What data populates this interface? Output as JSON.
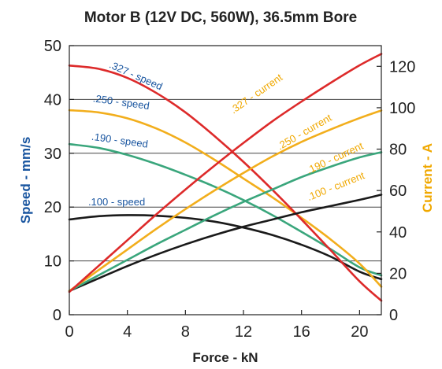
{
  "chart_data": {
    "type": "line",
    "title": "Motor B (12V DC, 560W), 36.5mm Bore",
    "xlabel": "Force - kN",
    "ylabel_left": "Speed - mm/s",
    "ylabel_right": "Current - A",
    "xlim": [
      0,
      21.5
    ],
    "ylim_left": [
      0,
      50
    ],
    "ylim_right": [
      0,
      130
    ],
    "x_ticks": [
      "0",
      "4",
      "8",
      "12",
      "16",
      "20"
    ],
    "y_left_ticks": [
      "0",
      "10",
      "20",
      "30",
      "40",
      "50"
    ],
    "y_right_ticks": [
      "0",
      "20",
      "40",
      "60",
      "80",
      "100",
      "120"
    ],
    "grid": "horizontal",
    "colors": {
      "axis_text": "#222222",
      "speed_label": "#1a56a0",
      "current_label": "#f0a800",
      "black": "#1a1a1a",
      "green": "#3aa67c",
      "orange": "#f2ae1c",
      "red": "#dd2a2a"
    },
    "series": [
      {
        "name": ".100 - speed",
        "color": "#1a1a1a",
        "axis": "left",
        "x": [
          0,
          2,
          4,
          6,
          8,
          10,
          12,
          14,
          16,
          18,
          20,
          21.5
        ],
        "y": [
          17.7,
          18.3,
          18.5,
          18.4,
          18.0,
          17.3,
          16.2,
          14.8,
          13.0,
          10.8,
          8.0,
          6.6
        ]
      },
      {
        "name": ".190 - speed",
        "color": "#3aa67c",
        "axis": "left",
        "x": [
          0,
          2,
          4,
          6,
          8,
          10,
          12,
          14,
          16,
          18,
          20,
          21.5
        ],
        "y": [
          31.7,
          31.0,
          29.7,
          28.0,
          26.0,
          23.8,
          21.3,
          18.5,
          15.4,
          12.2,
          8.8,
          7.3
        ]
      },
      {
        "name": ".250 - speed",
        "color": "#f2ae1c",
        "axis": "left",
        "x": [
          0,
          2,
          4,
          6,
          8,
          10,
          12,
          14,
          16,
          18,
          20,
          21.5
        ],
        "y": [
          38.0,
          37.6,
          36.5,
          34.6,
          32.0,
          28.8,
          25.3,
          21.8,
          18.0,
          14.0,
          9.5,
          5.2
        ]
      },
      {
        "name": ".327 - speed",
        "color": "#dd2a2a",
        "axis": "left",
        "x": [
          0,
          2,
          4,
          6,
          8,
          10,
          12,
          14,
          16,
          18,
          20,
          21.5
        ],
        "y": [
          46.3,
          45.7,
          44.0,
          41.2,
          37.6,
          33.2,
          28.4,
          23.2,
          17.7,
          12.0,
          6.2,
          2.6
        ]
      },
      {
        "name": ".100 - current",
        "color": "#1a1a1a",
        "axis": "right",
        "x": [
          0,
          2,
          4,
          6,
          8,
          10,
          12,
          14,
          16,
          18,
          20,
          21.5
        ],
        "y": [
          11.5,
          17.5,
          23.5,
          29.0,
          34.0,
          38.5,
          42.5,
          46.0,
          49.5,
          52.5,
          55.5,
          58.0
        ]
      },
      {
        "name": ".190 - current",
        "color": "#3aa67c",
        "axis": "right",
        "x": [
          0,
          2,
          4,
          6,
          8,
          10,
          12,
          14,
          16,
          18,
          20,
          21.5
        ],
        "y": [
          11.5,
          19.0,
          26.5,
          34.0,
          41.0,
          48.0,
          54.5,
          60.5,
          66.5,
          71.5,
          76.0,
          78.5
        ]
      },
      {
        "name": ".250 - current",
        "color": "#f2ae1c",
        "axis": "right",
        "x": [
          0,
          2,
          4,
          6,
          8,
          10,
          12,
          14,
          16,
          18,
          20,
          21.5
        ],
        "y": [
          11.5,
          21.5,
          31.5,
          41.5,
          51.0,
          60.0,
          68.5,
          76.5,
          83.5,
          89.5,
          95.0,
          98.7
        ]
      },
      {
        "name": ".327 - current",
        "color": "#dd2a2a",
        "axis": "right",
        "x": [
          0,
          2,
          4,
          6,
          8,
          10,
          12,
          14,
          16,
          18,
          20,
          21.5
        ],
        "y": [
          11.0,
          23.5,
          36.0,
          48.5,
          60.5,
          72.0,
          83.0,
          93.5,
          103.0,
          112.0,
          120.5,
          126.0
        ]
      }
    ],
    "labels": [
      {
        "text": ".327 - speed",
        "color": "#1a56a0",
        "x": 2.7,
        "y": 46.0,
        "rotate": 24
      },
      {
        "text": ".250 - speed",
        "color": "#1a56a0",
        "x": 1.6,
        "y": 39.6,
        "rotate": 8
      },
      {
        "text": ".190 - speed",
        "color": "#1a56a0",
        "x": 1.5,
        "y": 32.5,
        "rotate": 8
      },
      {
        "text": ".100 - speed",
        "color": "#1a56a0",
        "x": 1.3,
        "y": 20.3,
        "rotate": 0
      },
      {
        "text": ".327 - current",
        "color": "#f0a800",
        "x": 11.3,
        "y": 97.0,
        "rotate": -35
      },
      {
        "text": ".250 - current",
        "color": "#f0a800",
        "x": 14.5,
        "y": 79.5,
        "rotate": -30
      },
      {
        "text": ".190 - current",
        "color": "#f0a800",
        "x": 16.5,
        "y": 68.0,
        "rotate": -25
      },
      {
        "text": ".100 - current",
        "color": "#f0a800",
        "x": 16.5,
        "y": 55.0,
        "rotate": -22
      }
    ]
  }
}
